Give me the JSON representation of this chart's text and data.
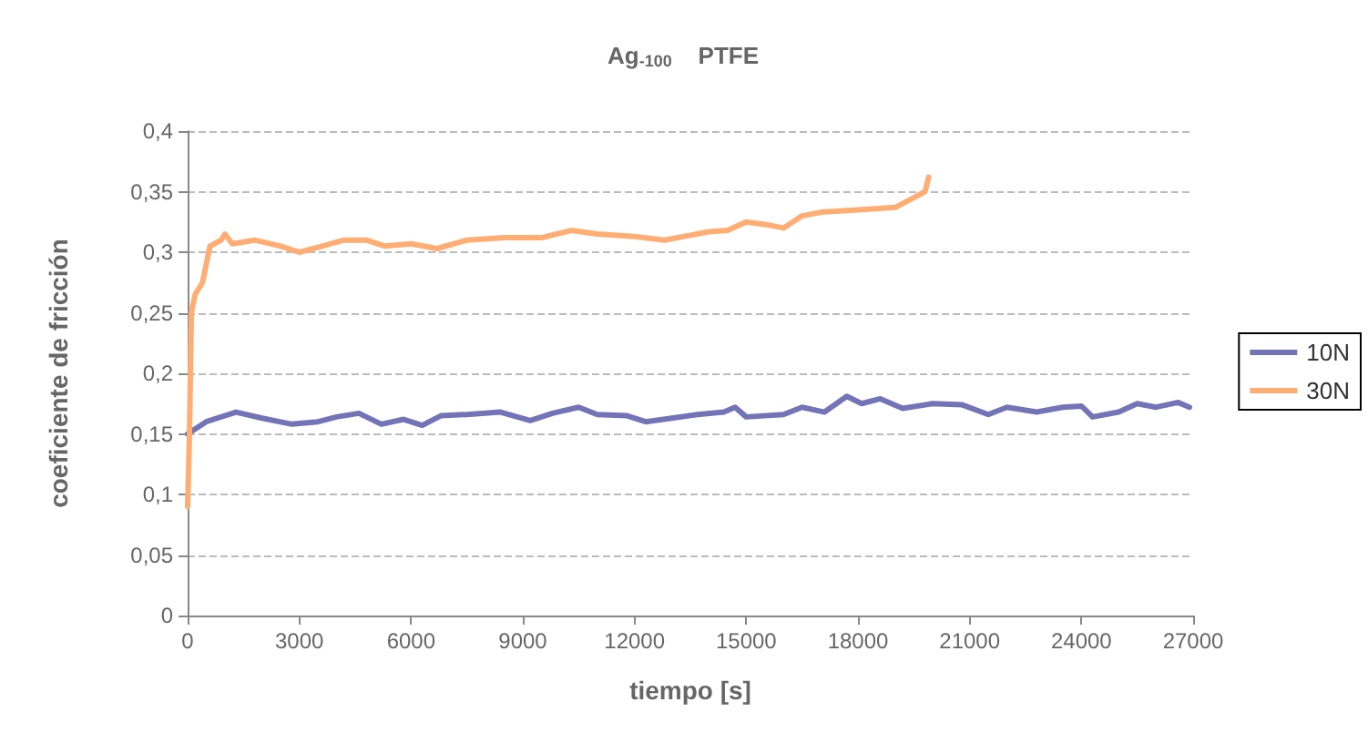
{
  "chart_data": {
    "type": "line",
    "title": "Ag$_{-100}$    PTFE",
    "xlabel": "tiempo [s]",
    "ylabel": "coeficiente de fricción",
    "xlim": [
      0,
      27000
    ],
    "xticks": [
      0,
      3000,
      6000,
      9000,
      12000,
      15000,
      18000,
      21000,
      24000,
      27000
    ],
    "ylim": [
      0,
      0.4
    ],
    "yticks": [
      {
        "value": 0,
        "label": "0"
      },
      {
        "value": 0.05,
        "label": "0,05"
      },
      {
        "value": 0.1,
        "label": "0,1"
      },
      {
        "value": 0.15,
        "label": "0,15"
      },
      {
        "value": 0.2,
        "label": "0,2"
      },
      {
        "value": 0.25,
        "label": "0,25"
      },
      {
        "value": 0.3,
        "label": "0,3"
      },
      {
        "value": 0.35,
        "label": "0,35"
      },
      {
        "value": 0.4,
        "label": "0,4"
      }
    ],
    "grid": "y",
    "legend": "right",
    "marker": "none",
    "line_style": "solid",
    "series": [
      {
        "name": "10N",
        "color": "#7373b8",
        "x": [
          0,
          500,
          1300,
          2000,
          2800,
          3500,
          4000,
          4600,
          5200,
          5800,
          6300,
          6800,
          7500,
          8400,
          9200,
          9800,
          10500,
          11000,
          11800,
          12300,
          13000,
          13700,
          14400,
          14700,
          15000,
          16000,
          16500,
          17100,
          17700,
          18100,
          18600,
          19200,
          20000,
          20800,
          21500,
          22000,
          22800,
          23500,
          24000,
          24300,
          25000,
          25500,
          26000,
          26600,
          26900
        ],
        "values": [
          0.15,
          0.16,
          0.168,
          0.163,
          0.158,
          0.16,
          0.164,
          0.167,
          0.158,
          0.162,
          0.157,
          0.165,
          0.166,
          0.168,
          0.161,
          0.167,
          0.172,
          0.166,
          0.165,
          0.16,
          0.163,
          0.166,
          0.168,
          0.172,
          0.164,
          0.166,
          0.172,
          0.168,
          0.181,
          0.175,
          0.179,
          0.171,
          0.175,
          0.174,
          0.166,
          0.172,
          0.168,
          0.172,
          0.173,
          0.164,
          0.168,
          0.175,
          0.172,
          0.176,
          0.172
        ]
      },
      {
        "name": "30N",
        "color": "#ffad73",
        "x": [
          0,
          50,
          100,
          200,
          400,
          600,
          900,
          1000,
          1200,
          1800,
          2500,
          3000,
          3500,
          4200,
          4800,
          5300,
          6000,
          6700,
          7500,
          8500,
          9500,
          10300,
          11000,
          12000,
          12800,
          13500,
          14000,
          14500,
          15000,
          15500,
          16000,
          16500,
          17000,
          18000,
          19000,
          19500,
          19800,
          19900
        ],
        "values": [
          0.09,
          0.15,
          0.25,
          0.265,
          0.275,
          0.305,
          0.31,
          0.315,
          0.307,
          0.31,
          0.305,
          0.3,
          0.304,
          0.31,
          0.31,
          0.305,
          0.307,
          0.303,
          0.31,
          0.312,
          0.312,
          0.318,
          0.315,
          0.313,
          0.31,
          0.314,
          0.317,
          0.318,
          0.325,
          0.323,
          0.32,
          0.33,
          0.333,
          0.335,
          0.337,
          0.345,
          0.35,
          0.362
        ]
      }
    ]
  }
}
